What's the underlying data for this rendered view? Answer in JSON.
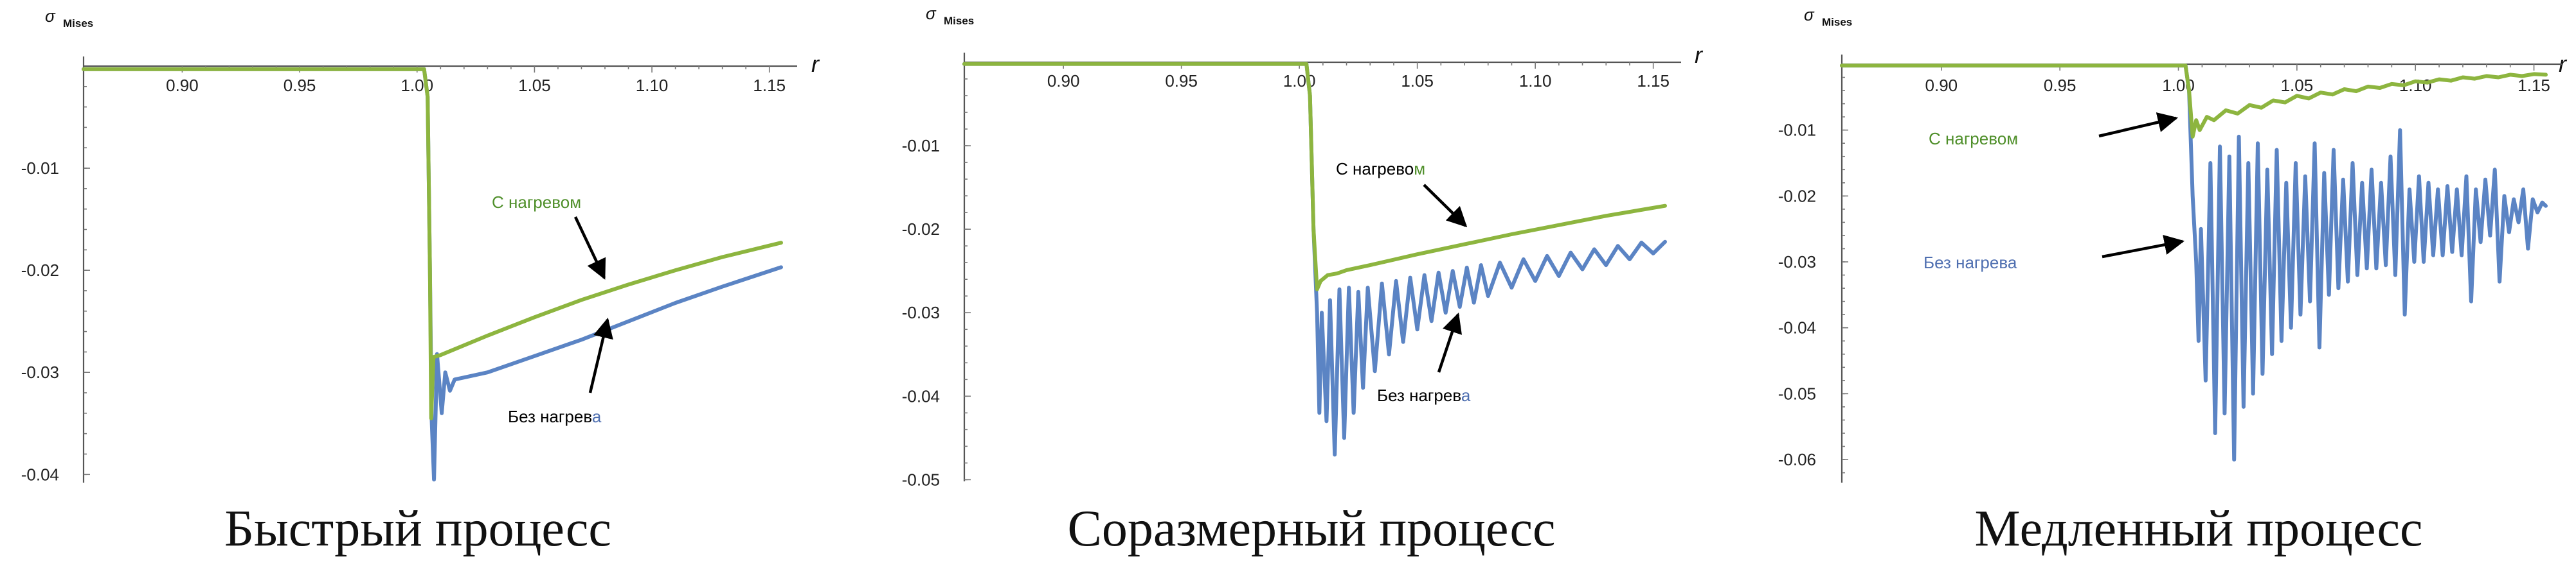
{
  "colors": {
    "heated": "#8db53f",
    "unheated": "#5b84c4",
    "heated_label": "#4f8f2a",
    "unheated_label": "#4f6fb0"
  },
  "chart_data": [
    {
      "type": "line",
      "title": "Быстрый процесс",
      "ylabel": "σ",
      "ylabel_sub": "Mises",
      "xlabel": "r",
      "xlim": [
        0.858,
        1.155
      ],
      "ylim": [
        -0.0408,
        0.0005
      ],
      "x_ticks": [
        0.9,
        0.95,
        1.0,
        1.05,
        1.1,
        1.15
      ],
      "x_tick_labels": [
        "0.90",
        "0.95",
        "1.00",
        "1.05",
        "1.10",
        "1.15"
      ],
      "y_ticks": [
        -0.01,
        -0.02,
        -0.03,
        -0.04
      ],
      "y_tick_labels": [
        "-0.01",
        "-0.02",
        "-0.03",
        "-0.04"
      ],
      "annotations": [
        {
          "prefix": "С нагревом",
          "suffix": "",
          "series": "heated"
        },
        {
          "prefix": "Без нагрев",
          "suffix": "а",
          "series": "unheated"
        }
      ],
      "series": [
        {
          "key": "heated",
          "x": [
            0.858,
            1.003,
            1.0045,
            1.0055,
            1.006,
            1.007,
            1.01,
            1.03,
            1.05,
            1.07,
            1.09,
            1.11,
            1.13,
            1.155
          ],
          "y": [
            -0.0003,
            -0.0003,
            -0.003,
            -0.02,
            -0.0345,
            -0.0285,
            -0.0283,
            -0.0264,
            -0.0246,
            -0.0229,
            -0.0214,
            -0.02,
            -0.0187,
            -0.0173
          ]
        },
        {
          "key": "unheated",
          "x": [
            0.858,
            1.003,
            1.0045,
            1.0055,
            1.0062,
            1.0072,
            1.0085,
            1.0105,
            1.012,
            1.014,
            1.016,
            1.02,
            1.03,
            1.05,
            1.07,
            1.09,
            1.11,
            1.13,
            1.155
          ],
          "y": [
            -0.0003,
            -0.0003,
            -0.003,
            -0.02,
            -0.0345,
            -0.0405,
            -0.0282,
            -0.034,
            -0.03,
            -0.0318,
            -0.0307,
            -0.0305,
            -0.03,
            -0.0284,
            -0.0268,
            -0.025,
            -0.0232,
            -0.0216,
            -0.0197
          ]
        }
      ]
    },
    {
      "type": "line",
      "title": "Соразмерный процесс",
      "ylabel": "σ",
      "ylabel_sub": "Mises",
      "xlabel": "r",
      "xlim": [
        0.858,
        1.155
      ],
      "ylim": [
        -0.0502,
        0.0005
      ],
      "x_ticks": [
        0.9,
        0.95,
        1.0,
        1.05,
        1.1,
        1.15
      ],
      "x_tick_labels": [
        "0.90",
        "0.95",
        "1.00",
        "1.05",
        "1.10",
        "1.15"
      ],
      "y_ticks": [
        -0.01,
        -0.02,
        -0.03,
        -0.04,
        -0.05
      ],
      "y_tick_labels": [
        "-0.01",
        "-0.02",
        "-0.03",
        "-0.04",
        "-0.05"
      ],
      "annotations": [
        {
          "prefix": "С нагрево",
          "suffix": "м",
          "series": "heated"
        },
        {
          "prefix": "Без нагрев",
          "suffix": "а",
          "series": "unheated"
        }
      ],
      "series": [
        {
          "key": "heated",
          "x": [
            0.858,
            1.003,
            1.0045,
            1.006,
            1.0075,
            1.009,
            1.012,
            1.016,
            1.02,
            1.03,
            1.05,
            1.07,
            1.09,
            1.11,
            1.13,
            1.155
          ],
          "y": [
            -0.0002,
            -0.0002,
            -0.004,
            -0.02,
            -0.0272,
            -0.0262,
            -0.0255,
            -0.0253,
            -0.0249,
            -0.0243,
            -0.023,
            -0.0218,
            -0.0206,
            -0.0195,
            -0.0184,
            -0.0172
          ]
        },
        {
          "key": "unheated",
          "x": [
            0.858,
            1.003,
            1.0045,
            1.006,
            1.0075,
            1.0085,
            1.0095,
            1.0115,
            1.013,
            1.015,
            1.017,
            1.019,
            1.021,
            1.023,
            1.025,
            1.027,
            1.029,
            1.032,
            1.035,
            1.038,
            1.041,
            1.044,
            1.047,
            1.05,
            1.053,
            1.056,
            1.059,
            1.062,
            1.065,
            1.068,
            1.071,
            1.074,
            1.077,
            1.08,
            1.085,
            1.09,
            1.095,
            1.1,
            1.105,
            1.11,
            1.115,
            1.12,
            1.125,
            1.13,
            1.135,
            1.14,
            1.145,
            1.15,
            1.155
          ],
          "y": [
            -0.0002,
            -0.0002,
            -0.004,
            -0.02,
            -0.03,
            -0.042,
            -0.03,
            -0.043,
            -0.0285,
            -0.047,
            -0.0272,
            -0.045,
            -0.027,
            -0.042,
            -0.0275,
            -0.039,
            -0.027,
            -0.037,
            -0.0265,
            -0.035,
            -0.0262,
            -0.0335,
            -0.0258,
            -0.032,
            -0.0255,
            -0.031,
            -0.0252,
            -0.03,
            -0.025,
            -0.0293,
            -0.0246,
            -0.0288,
            -0.0243,
            -0.028,
            -0.024,
            -0.027,
            -0.0236,
            -0.0262,
            -0.0232,
            -0.0256,
            -0.0228,
            -0.0248,
            -0.0224,
            -0.0243,
            -0.022,
            -0.0236,
            -0.0216,
            -0.0229,
            -0.0215
          ]
        }
      ]
    },
    {
      "type": "line",
      "title": "Медленный процесс",
      "ylabel": "σ",
      "ylabel_sub": "Mises",
      "xlabel": "r",
      "xlim": [
        0.858,
        1.155
      ],
      "ylim": [
        -0.0635,
        0.0005
      ],
      "x_ticks": [
        0.9,
        0.95,
        1.0,
        1.05,
        1.1,
        1.15
      ],
      "x_tick_labels": [
        "0.90",
        "0.95",
        "1.00",
        "1.05",
        "1.10",
        "1.15"
      ],
      "y_ticks": [
        -0.01,
        -0.02,
        -0.03,
        -0.04,
        -0.05,
        -0.06
      ],
      "y_tick_labels": [
        "-0.01",
        "-0.02",
        "-0.03",
        "-0.04",
        "-0.05",
        "-0.06"
      ],
      "annotations": [
        {
          "prefix": "С нагревом",
          "suffix": "",
          "series": "heated"
        },
        {
          "prefix": "Без нагрева",
          "suffix": "",
          "series": "unheated"
        }
      ],
      "series": [
        {
          "key": "heated",
          "x": [
            0.858,
            1.003,
            1.0045,
            1.006,
            1.0075,
            1.009,
            1.012,
            1.015,
            1.02,
            1.025,
            1.03,
            1.035,
            1.04,
            1.045,
            1.05,
            1.055,
            1.06,
            1.065,
            1.07,
            1.075,
            1.08,
            1.085,
            1.09,
            1.095,
            1.1,
            1.105,
            1.11,
            1.115,
            1.12,
            1.125,
            1.13,
            1.135,
            1.14,
            1.145,
            1.15,
            1.155
          ],
          "y": [
            -0.0002,
            -0.0002,
            -0.004,
            -0.011,
            -0.0085,
            -0.01,
            -0.008,
            -0.0085,
            -0.007,
            -0.0075,
            -0.0062,
            -0.0066,
            -0.0055,
            -0.0058,
            -0.0048,
            -0.0052,
            -0.0043,
            -0.0046,
            -0.0038,
            -0.0041,
            -0.0034,
            -0.0036,
            -0.003,
            -0.0032,
            -0.0026,
            -0.0028,
            -0.0023,
            -0.0025,
            -0.002,
            -0.0022,
            -0.0018,
            -0.002,
            -0.0016,
            -0.0018,
            -0.0015,
            -0.0016
          ]
        },
        {
          "key": "unheated",
          "x": [
            0.858,
            1.003,
            1.0045,
            1.006,
            1.0075,
            1.0085,
            1.0095,
            1.0115,
            1.0135,
            1.0155,
            1.0175,
            1.0195,
            1.0215,
            1.0235,
            1.0255,
            1.0275,
            1.0295,
            1.0315,
            1.0335,
            1.0355,
            1.0375,
            1.0395,
            1.0415,
            1.0435,
            1.0455,
            1.0475,
            1.0495,
            1.0515,
            1.0535,
            1.0555,
            1.0575,
            1.0595,
            1.0615,
            1.0635,
            1.0655,
            1.0675,
            1.0695,
            1.0715,
            1.0735,
            1.0755,
            1.0775,
            1.0795,
            1.0815,
            1.0835,
            1.0855,
            1.0875,
            1.0895,
            1.0915,
            1.0935,
            1.0955,
            1.0975,
            1.0995,
            1.1015,
            1.1035,
            1.1055,
            1.1075,
            1.1095,
            1.1115,
            1.1135,
            1.1155,
            1.1175,
            1.1195,
            1.1215,
            1.1235,
            1.1255,
            1.1275,
            1.1295,
            1.1315,
            1.1335,
            1.1355,
            1.1375,
            1.1395,
            1.1415,
            1.1435,
            1.1455,
            1.1475,
            1.1495,
            1.1515,
            1.1535,
            1.155
          ],
          "y": [
            -0.0002,
            -0.0002,
            -0.004,
            -0.02,
            -0.03,
            -0.042,
            -0.025,
            -0.048,
            -0.015,
            -0.056,
            -0.0125,
            -0.053,
            -0.014,
            -0.06,
            -0.011,
            -0.052,
            -0.015,
            -0.05,
            -0.012,
            -0.047,
            -0.016,
            -0.044,
            -0.013,
            -0.042,
            -0.018,
            -0.04,
            -0.015,
            -0.038,
            -0.017,
            -0.036,
            -0.012,
            -0.043,
            -0.0165,
            -0.035,
            -0.013,
            -0.034,
            -0.0175,
            -0.033,
            -0.015,
            -0.032,
            -0.018,
            -0.031,
            -0.016,
            -0.031,
            -0.018,
            -0.0305,
            -0.014,
            -0.032,
            -0.01,
            -0.038,
            -0.019,
            -0.03,
            -0.017,
            -0.03,
            -0.018,
            -0.029,
            -0.019,
            -0.029,
            -0.0185,
            -0.0285,
            -0.019,
            -0.029,
            -0.017,
            -0.036,
            -0.019,
            -0.027,
            -0.0175,
            -0.026,
            -0.016,
            -0.033,
            -0.02,
            -0.0255,
            -0.0205,
            -0.024,
            -0.019,
            -0.028,
            -0.0205,
            -0.0225,
            -0.021,
            -0.0215
          ]
        }
      ]
    }
  ]
}
